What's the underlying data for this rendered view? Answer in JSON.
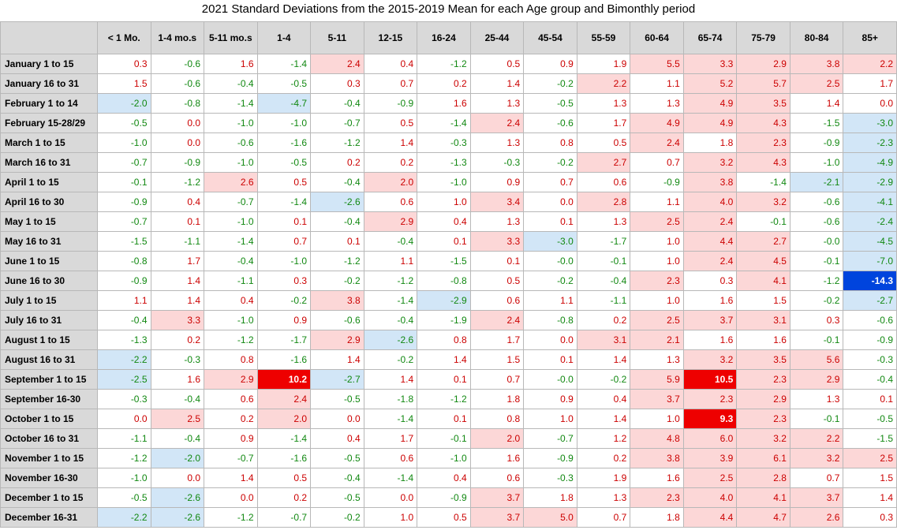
{
  "chart_data": {
    "type": "table",
    "title": "2021 Standard Deviations from the 2015-2019 Mean for each Age group and Bimonthly period",
    "columns": [
      "< 1 Mo.",
      "1-4 mo.s",
      "5-11 mo.s",
      "1-4",
      "5-11",
      "12-15",
      "16-24",
      "25-44",
      "45-54",
      "55-59",
      "60-64",
      "65-74",
      "75-79",
      "80-84",
      "85+"
    ],
    "rows": [
      {
        "label": "January 1 to 15",
        "values": [
          "0.3",
          "-0.6",
          "1.6",
          "-1.4",
          "2.4",
          "0.4",
          "-1.2",
          "0.5",
          "0.9",
          "1.9",
          "5.5",
          "3.3",
          "2.9",
          "3.8",
          "2.2"
        ]
      },
      {
        "label": "January 16 to 31",
        "values": [
          "1.5",
          "-0.6",
          "-0.4",
          "-0.5",
          "0.3",
          "0.7",
          "0.2",
          "1.4",
          "-0.2",
          "2.2",
          "1.1",
          "5.2",
          "5.7",
          "2.5",
          "1.7"
        ]
      },
      {
        "label": "February 1 to 14",
        "values": [
          "-2.0",
          "-0.8",
          "-1.4",
          "-4.7",
          "-0.4",
          "-0.9",
          "1.6",
          "1.3",
          "-0.5",
          "1.3",
          "1.3",
          "4.9",
          "3.5",
          "1.4",
          "0.0"
        ]
      },
      {
        "label": "February 15-28/29",
        "values": [
          "-0.5",
          "0.0",
          "-1.0",
          "-1.0",
          "-0.7",
          "0.5",
          "-1.4",
          "2.4",
          "-0.6",
          "1.7",
          "4.9",
          "4.9",
          "4.3",
          "-1.5",
          "-3.0"
        ]
      },
      {
        "label": "March 1 to 15",
        "values": [
          "-1.0",
          "0.0",
          "-0.6",
          "-1.6",
          "-1.2",
          "1.4",
          "-0.3",
          "1.3",
          "0.8",
          "0.5",
          "2.4",
          "1.8",
          "2.3",
          "-0.9",
          "-2.3"
        ]
      },
      {
        "label": "March 16 to 31",
        "values": [
          "-0.7",
          "-0.9",
          "-1.0",
          "-0.5",
          "0.2",
          "0.2",
          "-1.3",
          "-0.3",
          "-0.2",
          "2.7",
          "0.7",
          "3.2",
          "4.3",
          "-1.0",
          "-4.9"
        ]
      },
      {
        "label": "April 1 to 15",
        "values": [
          "-0.1",
          "-1.2",
          "2.6",
          "0.5",
          "-0.4",
          "2.0",
          "-1.0",
          "0.9",
          "0.7",
          "0.6",
          "-0.9",
          "3.8",
          "-1.4",
          "-2.1",
          "-2.9"
        ]
      },
      {
        "label": "April 16 to 30",
        "values": [
          "-0.9",
          "0.4",
          "-0.7",
          "-1.4",
          "-2.6",
          "0.6",
          "1.0",
          "3.4",
          "0.0",
          "2.8",
          "1.1",
          "4.0",
          "3.2",
          "-0.6",
          "-4.1"
        ]
      },
      {
        "label": "May 1 to 15",
        "values": [
          "-0.7",
          "0.1",
          "-1.0",
          "0.1",
          "-0.4",
          "2.9",
          "0.4",
          "1.3",
          "0.1",
          "1.3",
          "2.5",
          "2.4",
          "-0.1",
          "-0.6",
          "-2.4"
        ]
      },
      {
        "label": "May 16 to 31",
        "values": [
          "-1.5",
          "-1.1",
          "-1.4",
          "0.7",
          "0.1",
          "-0.4",
          "0.1",
          "3.3",
          "-3.0",
          "-1.7",
          "1.0",
          "4.4",
          "2.7",
          "-0.0",
          "-4.5"
        ]
      },
      {
        "label": "June 1 to 15",
        "values": [
          "-0.8",
          "1.7",
          "-0.4",
          "-1.0",
          "-1.2",
          "1.1",
          "-1.5",
          "0.1",
          "-0.0",
          "-0.1",
          "1.0",
          "2.4",
          "4.5",
          "-0.1",
          "-7.0"
        ]
      },
      {
        "label": "June 16 to 30",
        "values": [
          "-0.9",
          "1.4",
          "-1.1",
          "0.3",
          "-0.2",
          "-1.2",
          "-0.8",
          "0.5",
          "-0.2",
          "-0.4",
          "2.3",
          "0.3",
          "4.1",
          "-1.2",
          "-14.3"
        ]
      },
      {
        "label": "July 1 to 15",
        "values": [
          "1.1",
          "1.4",
          "0.4",
          "-0.2",
          "3.8",
          "-1.4",
          "-2.9",
          "0.6",
          "1.1",
          "-1.1",
          "1.0",
          "1.6",
          "1.5",
          "-0.2",
          "-2.7"
        ]
      },
      {
        "label": "July 16 to 31",
        "values": [
          "-0.4",
          "3.3",
          "-1.0",
          "0.9",
          "-0.6",
          "-0.4",
          "-1.9",
          "2.4",
          "-0.8",
          "0.2",
          "2.5",
          "3.7",
          "3.1",
          "0.3",
          "-0.6"
        ]
      },
      {
        "label": "August 1 to 15",
        "values": [
          "-1.3",
          "0.2",
          "-1.2",
          "-1.7",
          "2.9",
          "-2.6",
          "0.8",
          "1.7",
          "0.0",
          "3.1",
          "2.1",
          "1.6",
          "1.6",
          "-0.1",
          "-0.9"
        ]
      },
      {
        "label": "August 16 to 31",
        "values": [
          "-2.2",
          "-0.3",
          "0.8",
          "-1.6",
          "1.4",
          "-0.2",
          "1.4",
          "1.5",
          "0.1",
          "1.4",
          "1.3",
          "3.2",
          "3.5",
          "5.6",
          "-0.3"
        ]
      },
      {
        "label": "September 1 to 15",
        "values": [
          "-2.5",
          "1.6",
          "2.9",
          "10.2",
          "-2.7",
          "1.4",
          "0.1",
          "0.7",
          "-0.0",
          "-0.2",
          "5.9",
          "10.5",
          "2.3",
          "2.9",
          "-0.4"
        ]
      },
      {
        "label": "September 16-30",
        "values": [
          "-0.3",
          "-0.4",
          "0.6",
          "2.4",
          "-0.5",
          "-1.8",
          "-1.2",
          "1.8",
          "0.9",
          "0.4",
          "3.7",
          "2.3",
          "2.9",
          "1.3",
          "0.1"
        ]
      },
      {
        "label": "October 1 to 15",
        "values": [
          "0.0",
          "2.5",
          "0.2",
          "2.0",
          "0.0",
          "-1.4",
          "0.1",
          "0.8",
          "1.0",
          "1.4",
          "1.0",
          "9.3",
          "2.3",
          "-0.1",
          "-0.5"
        ]
      },
      {
        "label": "October 16 to 31",
        "values": [
          "-1.1",
          "-0.4",
          "0.9",
          "-1.4",
          "0.4",
          "1.7",
          "-0.1",
          "2.0",
          "-0.7",
          "1.2",
          "4.8",
          "6.0",
          "3.2",
          "2.2",
          "-1.5"
        ]
      },
      {
        "label": "November 1 to 15",
        "values": [
          "-1.2",
          "-2.0",
          "-0.7",
          "-1.6",
          "-0.5",
          "0.6",
          "-1.0",
          "1.6",
          "-0.9",
          "0.2",
          "3.8",
          "3.9",
          "6.1",
          "3.2",
          "2.5"
        ]
      },
      {
        "label": "November 16-30",
        "values": [
          "-1.0",
          "0.0",
          "1.4",
          "0.5",
          "-0.4",
          "-1.4",
          "0.4",
          "0.6",
          "-0.3",
          "1.9",
          "1.6",
          "2.5",
          "2.8",
          "0.7",
          "1.5"
        ]
      },
      {
        "label": "December 1 to 15",
        "values": [
          "-0.5",
          "-2.6",
          "0.0",
          "0.2",
          "-0.5",
          "0.0",
          "-0.9",
          "3.7",
          "1.8",
          "1.3",
          "2.3",
          "4.0",
          "4.1",
          "3.7",
          "1.4"
        ]
      },
      {
        "label": "December 16-31",
        "values": [
          "-2.2",
          "-2.6",
          "-1.2",
          "-0.7",
          "-0.2",
          "1.0",
          "0.5",
          "3.7",
          "5.0",
          "0.7",
          "1.8",
          "4.4",
          "4.7",
          "2.6",
          "0.3"
        ]
      }
    ]
  },
  "colors": {
    "header_bg": "#d9d9d9",
    "positive_text": "#cc0000",
    "negative_text": "#118811",
    "positive_tint": "#fcd7d7",
    "negative_tint": "#d2e6f7",
    "positive_strong": "#ee0000",
    "negative_strong": "#0044dd"
  },
  "highlight_thresholds": {
    "tint_at_or_above_abs": 2.0,
    "strong_at_or_above_abs": 9.0
  }
}
